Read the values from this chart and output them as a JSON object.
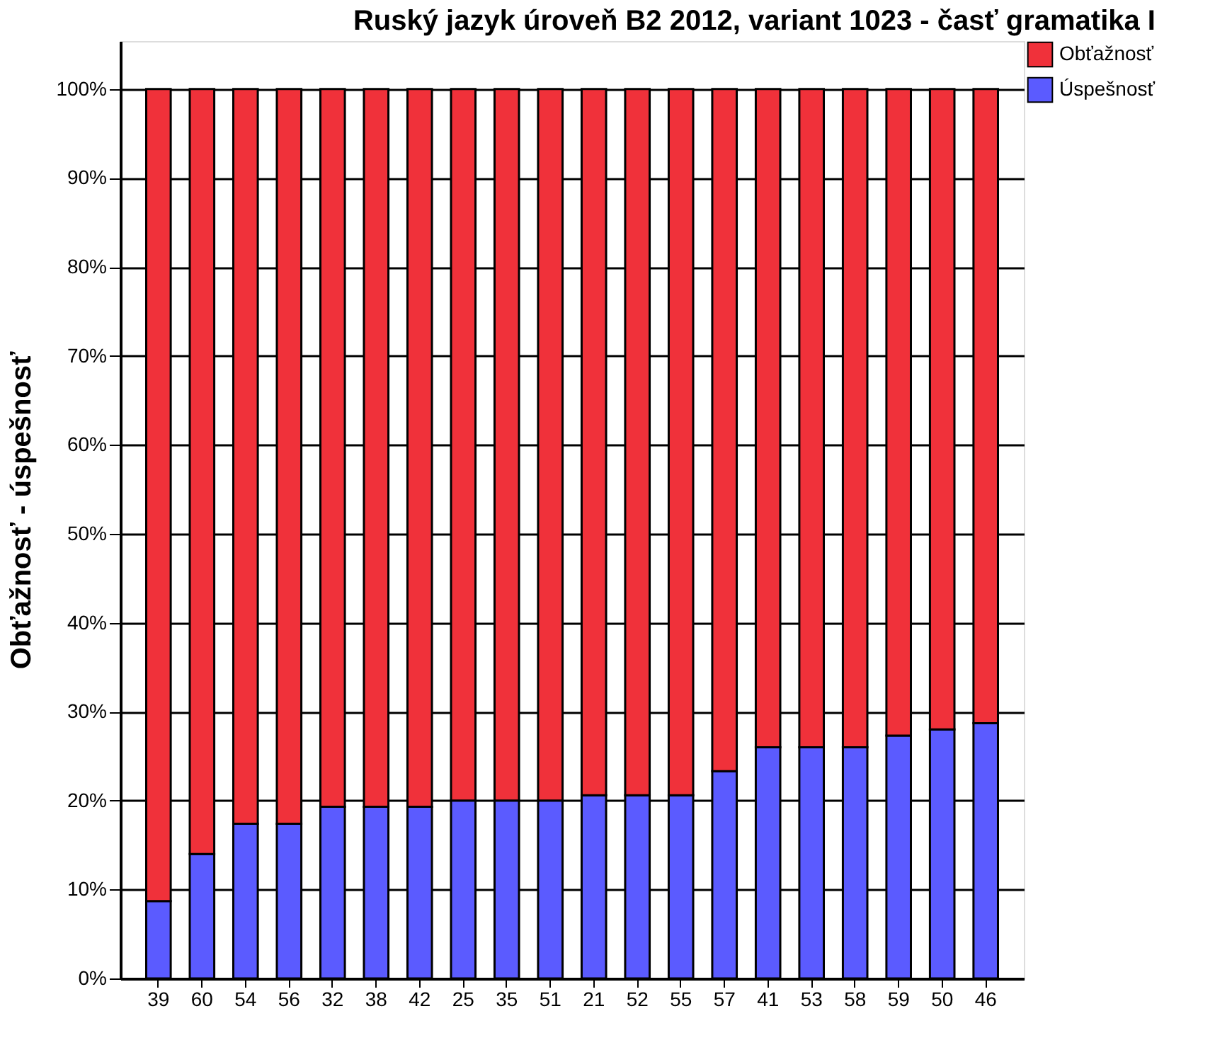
{
  "chart_data": {
    "type": "bar",
    "title": "Ruský jazyk úroveň B2 2012, variant 1023 - časť gramatika I",
    "ylabel": "Obťažnosť - úspešnosť",
    "categories": [
      "39",
      "60",
      "54",
      "56",
      "32",
      "38",
      "42",
      "25",
      "35",
      "51",
      "21",
      "52",
      "55",
      "57",
      "41",
      "53",
      "58",
      "59",
      "50",
      "46"
    ],
    "stacked": true,
    "series": [
      {
        "name": "Úspešnosť",
        "color": "#5b5bff",
        "values": [
          8.7,
          14.0,
          17.4,
          17.4,
          19.3,
          19.3,
          19.3,
          20.0,
          20.0,
          20.0,
          20.6,
          20.6,
          20.6,
          23.3,
          26.0,
          26.0,
          26.0,
          27.3,
          28.0,
          28.7
        ]
      },
      {
        "name": "Obťažnosť",
        "color": "#f0313a",
        "values": [
          91.3,
          86.0,
          82.6,
          82.6,
          80.7,
          80.7,
          80.7,
          80.0,
          80.0,
          80.0,
          79.4,
          79.4,
          79.4,
          76.7,
          74.0,
          74.0,
          74.0,
          72.7,
          72.0,
          71.3
        ]
      }
    ],
    "ylim": [
      0,
      105.4
    ],
    "yticks": [
      {
        "value": 0,
        "label": "0%"
      },
      {
        "value": 10,
        "label": "10%"
      },
      {
        "value": 20,
        "label": "20%"
      },
      {
        "value": 30,
        "label": "30%"
      },
      {
        "value": 40,
        "label": "40%"
      },
      {
        "value": 50,
        "label": "50%"
      },
      {
        "value": 60,
        "label": "60%"
      },
      {
        "value": 70,
        "label": "70%"
      },
      {
        "value": 80,
        "label": "80%"
      },
      {
        "value": 90,
        "label": "90%"
      },
      {
        "value": 100,
        "label": "100%"
      }
    ],
    "grid": "y",
    "legend": "top right"
  }
}
